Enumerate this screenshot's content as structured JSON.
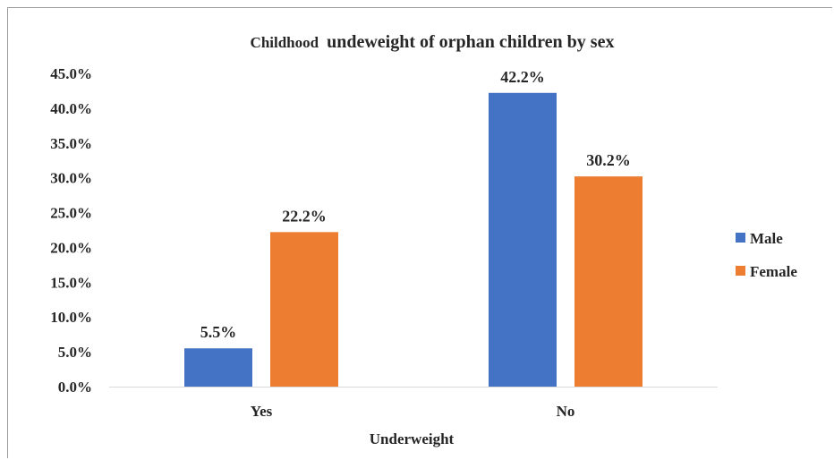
{
  "chart_data": {
    "type": "bar",
    "title_part1": "Childhood",
    "title_part2": "undeweight of orphan children by sex",
    "xlabel": "Underweight",
    "ylabel": "",
    "categories": [
      "Yes",
      "No"
    ],
    "series": [
      {
        "name": "Male",
        "values": [
          5.5,
          42.2
        ],
        "labels": [
          "5.5%",
          "42.2%"
        ],
        "color": "#4472C4"
      },
      {
        "name": "Female",
        "values": [
          22.2,
          30.2
        ],
        "labels": [
          "22.2%",
          "30.2%"
        ],
        "color": "#ED7D31"
      }
    ],
    "ylim": [
      0,
      45
    ],
    "yticks": [
      "0.0%",
      "5.0%",
      "10.0%",
      "15.0%",
      "20.0%",
      "25.0%",
      "30.0%",
      "35.0%",
      "40.0%",
      "45.0%"
    ],
    "grid": false,
    "legend_position": "right",
    "axis_color": "#d9d9d9"
  }
}
